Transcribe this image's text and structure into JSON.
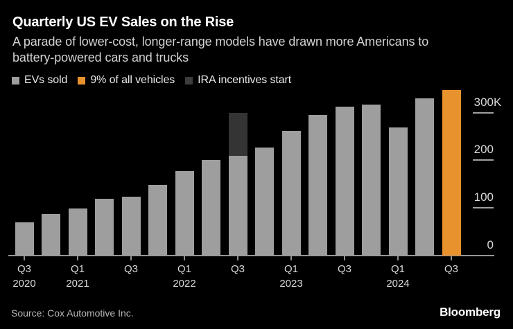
{
  "header": {
    "title": "Quarterly US EV Sales on the Rise",
    "subtitle": "A parade of lower-cost, longer-range models have drawn more Americans to battery-powered cars and trucks",
    "subtitle_lines": [
      "A parade of lower-cost, longer-range models have drawn more Americans to",
      "battery-powered cars and trucks"
    ]
  },
  "legend": {
    "items": [
      {
        "label": "EVs sold",
        "color": "#9E9E9E"
      },
      {
        "label": "9% of all vehicles",
        "color": "#E8922D"
      },
      {
        "label": "IRA incentives start",
        "color": "#3C3C3C"
      }
    ]
  },
  "chart_data": {
    "type": "bar",
    "title": "Quarterly US EV Sales on the Rise",
    "unit": "thousands of vehicles per quarter",
    "categories": [
      "Q3 2020",
      "Q4 2020",
      "Q1 2021",
      "Q2 2021",
      "Q3 2021",
      "Q4 2021",
      "Q1 2022",
      "Q2 2022",
      "Q3 2022",
      "Q4 2022",
      "Q1 2023",
      "Q2 2023",
      "Q3 2023",
      "Q4 2023",
      "Q1 2024",
      "Q2 2024",
      "Q3 2024"
    ],
    "values": [
      70,
      87,
      99,
      119,
      124,
      149,
      178,
      200,
      210,
      227,
      261,
      295,
      313,
      317,
      269,
      330,
      347
    ],
    "bar_color": "#9E9E9E",
    "highlight_bar": {
      "category": "Q3 2024",
      "color": "#E8922D",
      "meaning": "9% of all vehicles"
    },
    "annotation_overlay": {
      "category": "Q3 2022",
      "from": 210,
      "to": 300,
      "color": "#343434",
      "label": "IRA incentives start"
    },
    "ylim": [
      0,
      360
    ],
    "grid": "right-tick-dashes",
    "legend_position": "top-left",
    "yticks": [
      {
        "value": 0,
        "label": "0"
      },
      {
        "value": 100,
        "label": "100"
      },
      {
        "value": 200,
        "label": "200"
      },
      {
        "value": 300,
        "label": "300K"
      }
    ],
    "xticks": [
      {
        "quarter": "Q3",
        "year": "2020"
      },
      {
        "quarter": "Q1",
        "year": "2021"
      },
      {
        "quarter": "Q3",
        "year": ""
      },
      {
        "quarter": "Q1",
        "year": "2022"
      },
      {
        "quarter": "Q3",
        "year": ""
      },
      {
        "quarter": "Q1",
        "year": "2023"
      },
      {
        "quarter": "Q3",
        "year": ""
      },
      {
        "quarter": "Q1",
        "year": "2024"
      },
      {
        "quarter": "Q3",
        "year": ""
      }
    ]
  },
  "footer": {
    "source": "Source: Cox Automotive Inc.",
    "brand": "Bloomberg"
  }
}
